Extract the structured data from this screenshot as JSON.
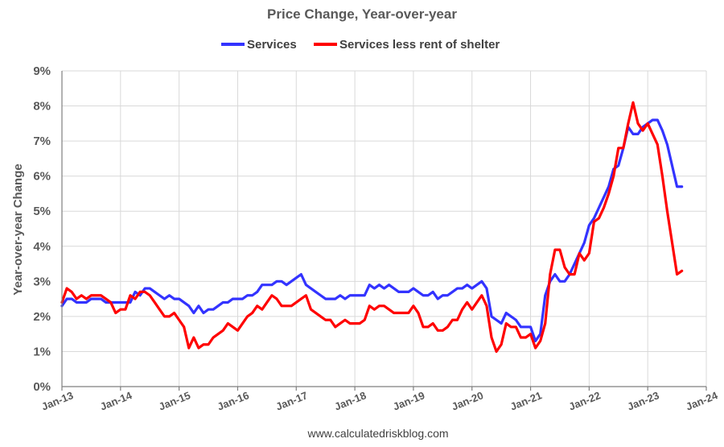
{
  "chart_data": {
    "type": "line",
    "title": "Price Change, Year-over-year",
    "ylabel": "Year-over-year Change",
    "xlabel": "",
    "source": "www.calculatedriskblog.com",
    "ylim": [
      0,
      9
    ],
    "yticks": [
      "0%",
      "1%",
      "2%",
      "3%",
      "4%",
      "5%",
      "6%",
      "7%",
      "8%",
      "9%"
    ],
    "xlim": [
      "2013-01",
      "2024-01"
    ],
    "xticks": [
      "Jan-13",
      "Jan-14",
      "Jan-15",
      "Jan-16",
      "Jan-17",
      "Jan-18",
      "Jan-19",
      "Jan-20",
      "Jan-21",
      "Jan-22",
      "Jan-23",
      "Jan-24"
    ],
    "grid": true,
    "legend_position": "top-center",
    "start_month": "2013-01",
    "series": [
      {
        "name": "Services",
        "color": "#3333ff",
        "values": [
          2.3,
          2.5,
          2.5,
          2.4,
          2.4,
          2.4,
          2.5,
          2.5,
          2.5,
          2.4,
          2.4,
          2.4,
          2.4,
          2.4,
          2.4,
          2.7,
          2.6,
          2.8,
          2.8,
          2.7,
          2.6,
          2.5,
          2.6,
          2.5,
          2.5,
          2.4,
          2.3,
          2.1,
          2.3,
          2.1,
          2.2,
          2.2,
          2.3,
          2.4,
          2.4,
          2.5,
          2.5,
          2.5,
          2.6,
          2.6,
          2.7,
          2.9,
          2.9,
          2.9,
          3.0,
          3.0,
          2.9,
          3.0,
          3.1,
          3.2,
          2.9,
          2.8,
          2.7,
          2.6,
          2.5,
          2.5,
          2.5,
          2.6,
          2.5,
          2.6,
          2.6,
          2.6,
          2.6,
          2.9,
          2.8,
          2.9,
          2.8,
          2.9,
          2.8,
          2.7,
          2.7,
          2.7,
          2.8,
          2.7,
          2.6,
          2.6,
          2.7,
          2.5,
          2.6,
          2.6,
          2.7,
          2.8,
          2.8,
          2.9,
          2.8,
          2.9,
          3.0,
          2.8,
          2.0,
          1.9,
          1.8,
          2.1,
          2.0,
          1.9,
          1.7,
          1.7,
          1.7,
          1.3,
          1.5,
          2.6,
          3.0,
          3.2,
          3.0,
          3.0,
          3.2,
          3.5,
          3.8,
          4.1,
          4.6,
          4.8,
          5.1,
          5.4,
          5.7,
          6.2,
          6.3,
          6.8,
          7.4,
          7.2,
          7.2,
          7.4,
          7.5,
          7.6,
          7.6,
          7.3,
          6.9,
          6.3,
          5.7,
          5.7
        ]
      },
      {
        "name": "Services less rent of shelter",
        "color": "#ff0000",
        "values": [
          2.4,
          2.8,
          2.7,
          2.5,
          2.6,
          2.5,
          2.6,
          2.6,
          2.6,
          2.5,
          2.4,
          2.1,
          2.2,
          2.2,
          2.6,
          2.5,
          2.7,
          2.7,
          2.6,
          2.4,
          2.2,
          2.0,
          2.0,
          2.1,
          1.9,
          1.7,
          1.1,
          1.4,
          1.1,
          1.2,
          1.2,
          1.4,
          1.5,
          1.6,
          1.8,
          1.7,
          1.6,
          1.8,
          2.0,
          2.1,
          2.3,
          2.2,
          2.4,
          2.6,
          2.5,
          2.3,
          2.3,
          2.3,
          2.4,
          2.5,
          2.6,
          2.2,
          2.1,
          2.0,
          1.9,
          1.9,
          1.7,
          1.8,
          1.9,
          1.8,
          1.8,
          1.8,
          1.9,
          2.3,
          2.2,
          2.3,
          2.3,
          2.2,
          2.1,
          2.1,
          2.1,
          2.1,
          2.3,
          2.1,
          1.7,
          1.7,
          1.8,
          1.6,
          1.6,
          1.7,
          1.9,
          1.9,
          2.2,
          2.4,
          2.2,
          2.4,
          2.6,
          2.3,
          1.4,
          1.0,
          1.2,
          1.8,
          1.7,
          1.7,
          1.4,
          1.4,
          1.5,
          1.1,
          1.3,
          1.8,
          3.2,
          3.9,
          3.9,
          3.4,
          3.2,
          3.2,
          3.8,
          3.6,
          3.8,
          4.7,
          4.8,
          5.1,
          5.5,
          6.0,
          6.8,
          6.8,
          7.5,
          8.1,
          7.5,
          7.3,
          7.5,
          7.2,
          6.9,
          6.0,
          5.0,
          4.1,
          3.2,
          3.3
        ]
      }
    ]
  }
}
